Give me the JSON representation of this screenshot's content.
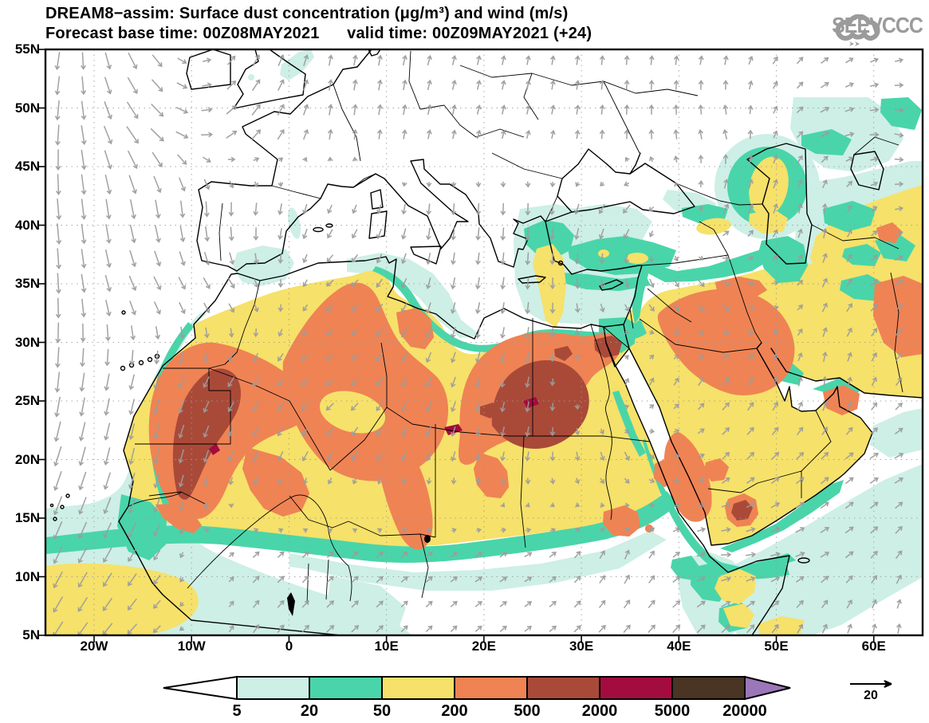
{
  "title": {
    "line1": "DREAM8−assim: Surface dust concentration (μg/m³) and wind (m/s)",
    "line2": "Forecast base time: 00Z08MAY2021      valid time: 00Z09MAY2021 (+24)"
  },
  "logo": {
    "text": "SEEVCCC",
    "color": "#9b9b9b"
  },
  "axes": {
    "lat_labels": [
      "55N",
      "50N",
      "45N",
      "40N",
      "35N",
      "30N",
      "25N",
      "20N",
      "15N",
      "10N",
      "5N"
    ],
    "lon_labels": [
      "20W",
      "10W",
      "0",
      "10E",
      "20E",
      "30E",
      "40E",
      "50E",
      "60E"
    ]
  },
  "legend": {
    "values": [
      "5",
      "20",
      "50",
      "200",
      "500",
      "2000",
      "5000",
      "20000"
    ],
    "colors": [
      "#ffffff",
      "#cdefe6",
      "#49d5a9",
      "#f6e16a",
      "#ef8354",
      "#a94a39",
      "#a30c3e",
      "#4a3423",
      "#9b77b9"
    ]
  },
  "wind_ref": {
    "label": "20"
  },
  "wind_field": {
    "color": "#9c9c9c",
    "spacing": 31,
    "cols": [
      -25,
      -15,
      -5,
      5,
      15,
      25,
      35,
      45,
      55,
      65
    ],
    "rows": [
      55,
      48,
      41,
      34,
      27,
      20,
      12,
      5
    ],
    "vectors": [
      [
        [
          105,
          22
        ],
        [
          60,
          22
        ],
        [
          300,
          16
        ],
        [
          280,
          13
        ],
        [
          285,
          12
        ],
        [
          280,
          11
        ],
        [
          275,
          11
        ],
        [
          285,
          11
        ],
        [
          320,
          11
        ],
        [
          350,
          10
        ]
      ],
      [
        [
          100,
          26
        ],
        [
          50,
          26
        ],
        [
          315,
          18
        ],
        [
          275,
          13
        ],
        [
          282,
          12
        ],
        [
          285,
          11
        ],
        [
          272,
          12
        ],
        [
          255,
          12
        ],
        [
          335,
          12
        ],
        [
          25,
          12
        ]
      ],
      [
        [
          85,
          26
        ],
        [
          80,
          24
        ],
        [
          95,
          18
        ],
        [
          115,
          12
        ],
        [
          95,
          15
        ],
        [
          92,
          16
        ],
        [
          130,
          14
        ],
        [
          300,
          13
        ],
        [
          275,
          12
        ],
        [
          5,
          12
        ]
      ],
      [
        [
          90,
          26
        ],
        [
          60,
          18
        ],
        [
          50,
          13
        ],
        [
          150,
          12
        ],
        [
          105,
          14
        ],
        [
          95,
          14
        ],
        [
          65,
          12
        ],
        [
          48,
          14
        ],
        [
          300,
          12
        ],
        [
          330,
          12
        ]
      ],
      [
        [
          95,
          26
        ],
        [
          105,
          18
        ],
        [
          125,
          13
        ],
        [
          148,
          12
        ],
        [
          112,
          13
        ],
        [
          100,
          13
        ],
        [
          290,
          10
        ],
        [
          310,
          12
        ],
        [
          275,
          12
        ],
        [
          315,
          12
        ]
      ],
      [
        [
          108,
          26
        ],
        [
          102,
          20
        ],
        [
          112,
          13
        ],
        [
          120,
          13
        ],
        [
          108,
          12
        ],
        [
          100,
          11
        ],
        [
          62,
          12
        ],
        [
          315,
          12
        ],
        [
          318,
          12
        ],
        [
          338,
          12
        ]
      ],
      [
        [
          115,
          24
        ],
        [
          122,
          18
        ],
        [
          318,
          10
        ],
        [
          315,
          10
        ],
        [
          322,
          10
        ],
        [
          330,
          10
        ],
        [
          292,
          12
        ],
        [
          0,
          12
        ],
        [
          330,
          12
        ],
        [
          300,
          12
        ]
      ],
      [
        [
          122,
          22
        ],
        [
          135,
          16
        ],
        [
          302,
          12
        ],
        [
          318,
          12
        ],
        [
          315,
          10
        ],
        [
          320,
          10
        ],
        [
          312,
          12
        ],
        [
          315,
          14
        ],
        [
          292,
          12
        ],
        [
          272,
          12
        ]
      ]
    ]
  },
  "map": {
    "grid_color": "#9a9a9a",
    "frame_color": "#000000",
    "coast_color": "#000000"
  }
}
